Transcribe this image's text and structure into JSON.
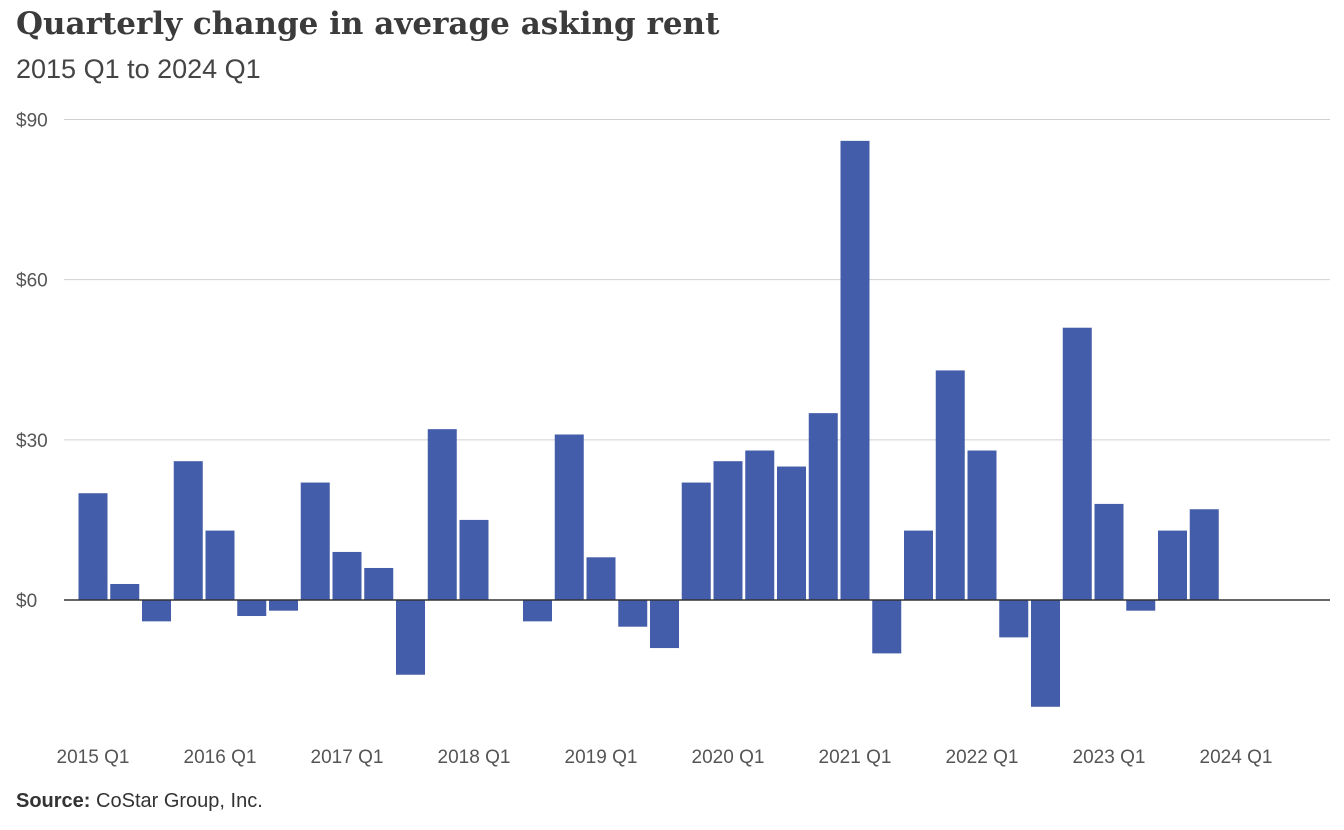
{
  "chart_data": {
    "type": "bar",
    "title": "Quarterly change in average asking rent",
    "subtitle": "2015 Q1 to 2024 Q1",
    "source_label": "Source:",
    "source_text": "CoStar Group, Inc.",
    "bar_color": "#445DAA",
    "grid": true,
    "ylim": [
      -25,
      90
    ],
    "yticks": [
      0,
      30,
      60,
      90
    ],
    "ytick_labels": [
      "$0",
      "$30",
      "$60",
      "$90"
    ],
    "categories": [
      "2015 Q1",
      "2015 Q2",
      "2015 Q3",
      "2015 Q4",
      "2016 Q1",
      "2016 Q2",
      "2016 Q3",
      "2016 Q4",
      "2017 Q1",
      "2017 Q2",
      "2017 Q3",
      "2017 Q4",
      "2018 Q1",
      "2018 Q2",
      "2018 Q3",
      "2018 Q4",
      "2019 Q1",
      "2019 Q2",
      "2019 Q3",
      "2019 Q4",
      "2020 Q1",
      "2020 Q2",
      "2020 Q3",
      "2020 Q4",
      "2021 Q1",
      "2021 Q2",
      "2021 Q3",
      "2021 Q4",
      "2022 Q1",
      "2022 Q2",
      "2022 Q3",
      "2022 Q4",
      "2023 Q1",
      "2023 Q2",
      "2023 Q3",
      "2023 Q4",
      "2024 Q1"
    ],
    "xtick_labels": [
      "2015 Q1",
      "2016 Q1",
      "2017 Q1",
      "2018 Q1",
      "2019 Q1",
      "2020 Q1",
      "2021 Q1",
      "2022 Q1",
      "2023 Q1",
      "2024 Q1"
    ],
    "values": [
      20,
      3,
      -4,
      26,
      13,
      -3,
      -2,
      22,
      9,
      6,
      -14,
      32,
      15,
      0,
      -4,
      31,
      8,
      -5,
      -9,
      22,
      26,
      28,
      25,
      35,
      86,
      -10,
      13,
      43,
      28,
      -7,
      -20,
      51,
      18,
      -2,
      13,
      17,
      0
    ]
  }
}
